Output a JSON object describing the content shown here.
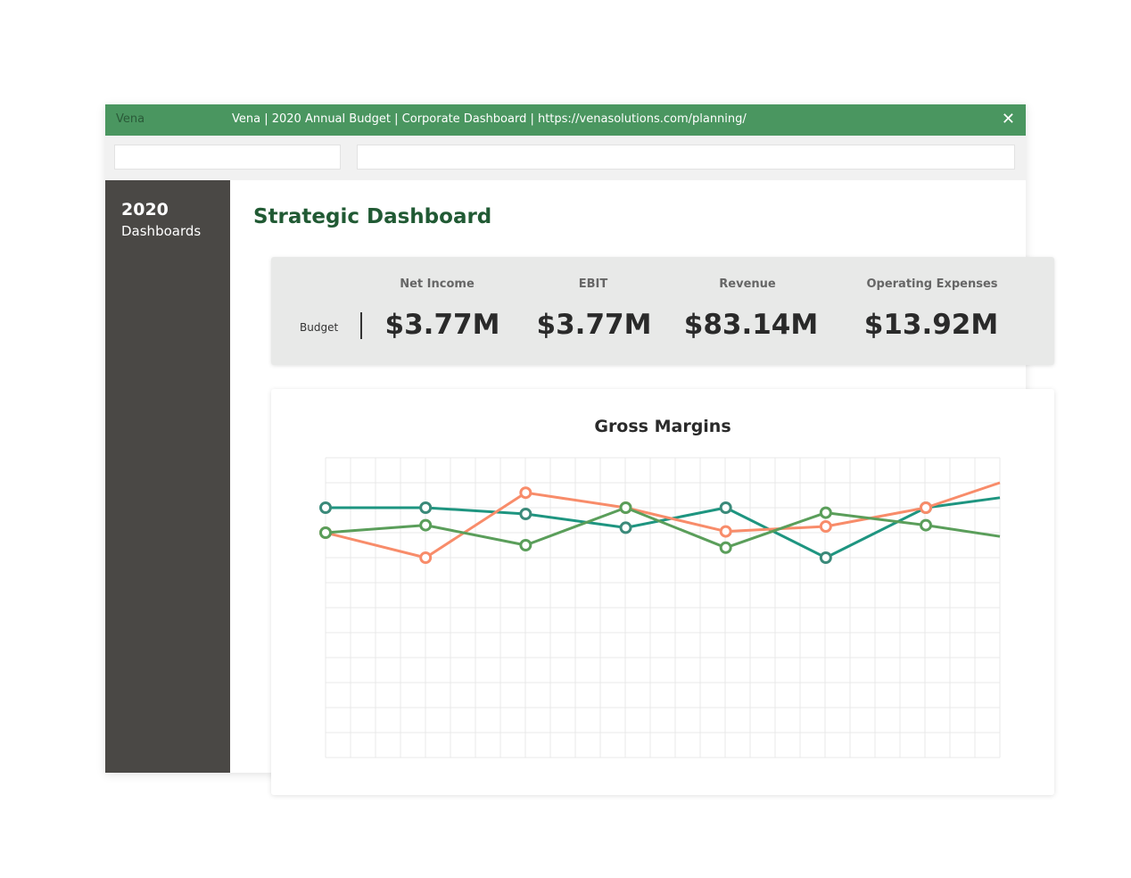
{
  "window": {
    "brand": "Vena",
    "title": "Vena | 2020 Annual Budget | Corporate Dashboard | https://venasolutions.com/planning/",
    "close_icon": "close-icon"
  },
  "sidebar": {
    "year": "2020",
    "items": [
      {
        "label": "Dashboards"
      }
    ]
  },
  "main": {
    "title": "Strategic Dashboard"
  },
  "kpi": {
    "row_label": "Budget",
    "items": [
      {
        "label": "Net Income",
        "value": "$3.77M"
      },
      {
        "label": "EBIT",
        "value": "$3.77M"
      },
      {
        "label": "Revenue",
        "value": "$83.14M"
      },
      {
        "label": "Operating Expenses",
        "value": "$13.92M"
      }
    ]
  },
  "chart_data": {
    "type": "line",
    "title": "Gross Margins",
    "xlabel": "",
    "ylabel": "",
    "grid": true,
    "xlim": [
      0,
      6.74
    ],
    "ylim": [
      0,
      12
    ],
    "series": [
      {
        "name": "teal",
        "color": "#1e9580",
        "marker": "#3b8a7a",
        "x": [
          0,
          1,
          2,
          3,
          4,
          5,
          6,
          6.74
        ],
        "values": [
          10,
          10,
          9.75,
          9.2,
          10,
          8,
          10,
          10.4
        ],
        "markers": 7
      },
      {
        "name": "orange",
        "color": "#f88c6a",
        "marker": "#f88c6a",
        "x": [
          0,
          1,
          2,
          3,
          4,
          5,
          6,
          6.74
        ],
        "values": [
          9,
          8,
          10.6,
          10,
          9.05,
          9.25,
          10,
          11
        ],
        "markers": 7
      },
      {
        "name": "green",
        "color": "#5a9e5a",
        "marker": "#5a9e5a",
        "x": [
          0,
          1,
          2,
          3,
          4,
          5,
          6,
          6.74
        ],
        "values": [
          9,
          9.3,
          8.5,
          10,
          8.4,
          9.8,
          9.3,
          8.85
        ],
        "markers": 7
      }
    ]
  }
}
